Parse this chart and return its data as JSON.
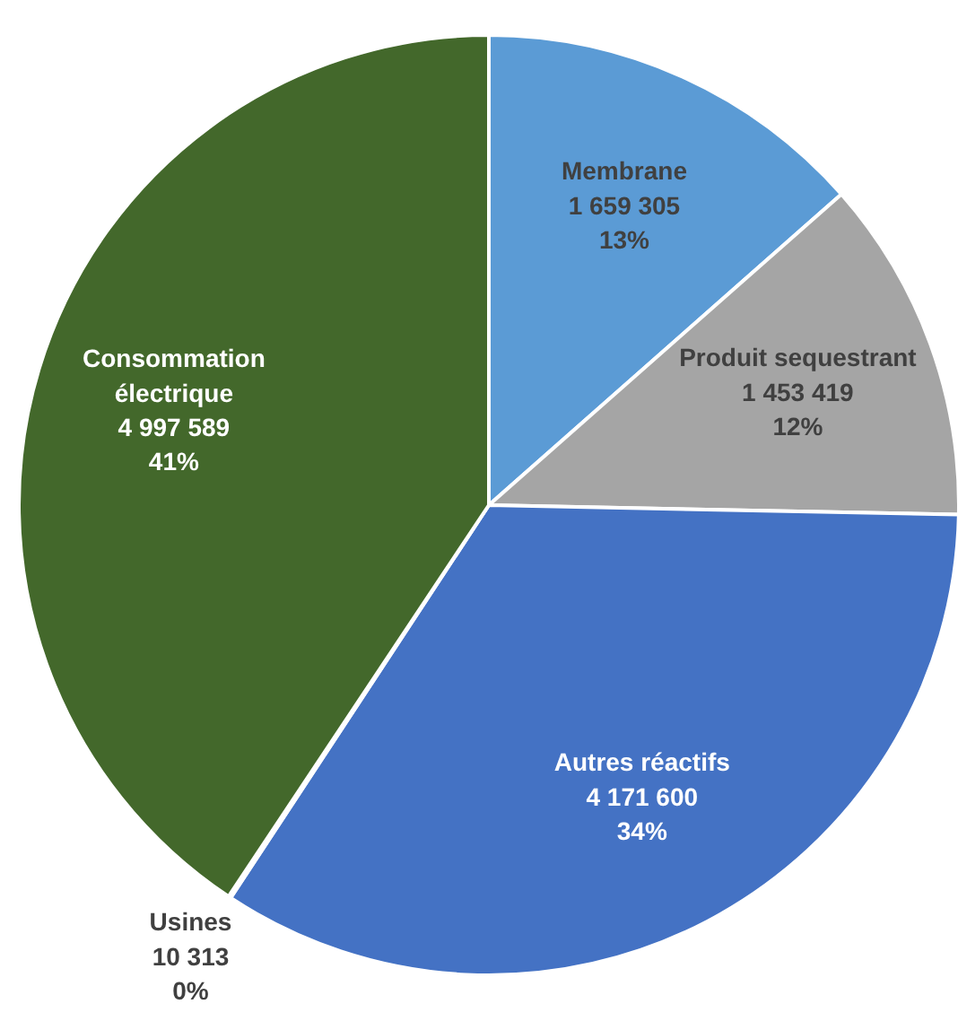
{
  "chart_data": {
    "type": "pie",
    "categories": [
      "Membrane",
      "Produit sequestrant",
      "Autres réactifs",
      "Usines",
      "Consommation\nélectrique"
    ],
    "values": [
      1659305,
      1453419,
      4171600,
      10313,
      4997589
    ],
    "colors": [
      "#5b9bd5",
      "#a5a5a5",
      "#4472c4",
      "#70ad47",
      "#43682b"
    ],
    "value_labels": [
      "1 659 305\n13%",
      "1 453 419\n12%",
      "4 171 600\n34%",
      "10 313\n0%",
      "4 997 589\n41%"
    ]
  }
}
